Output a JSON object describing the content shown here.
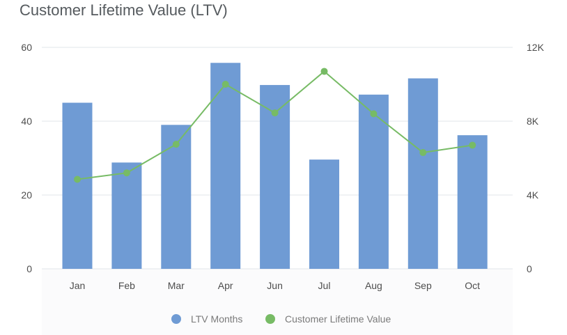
{
  "chart_data": {
    "type": "bar",
    "title": "Customer Lifetime Value (LTV)",
    "categories": [
      "Jan",
      "Feb",
      "Mar",
      "Apr",
      "Jun",
      "Jul",
      "Aug",
      "Sep",
      "Oct"
    ],
    "series": [
      {
        "name": "LTV Months",
        "type": "bar",
        "axis": "left",
        "color": "#6f9bd4",
        "values": [
          45,
          28.8,
          39,
          55.8,
          49.8,
          29.6,
          47.2,
          51.6,
          36.2
        ]
      },
      {
        "name": "Customer Lifetime Value",
        "type": "line",
        "axis": "right",
        "color": "#77bb65",
        "values": [
          4850,
          5200,
          6750,
          10000,
          8450,
          10700,
          8400,
          6300,
          6700
        ]
      }
    ],
    "y_left": {
      "ticks": [
        "0",
        "20",
        "40",
        "60"
      ],
      "range": [
        0,
        60
      ]
    },
    "y_right": {
      "ticks": [
        "0",
        "4K",
        "8K",
        "12K"
      ],
      "range": [
        0,
        12000
      ]
    },
    "grid": true,
    "legend": "bottom-center"
  }
}
